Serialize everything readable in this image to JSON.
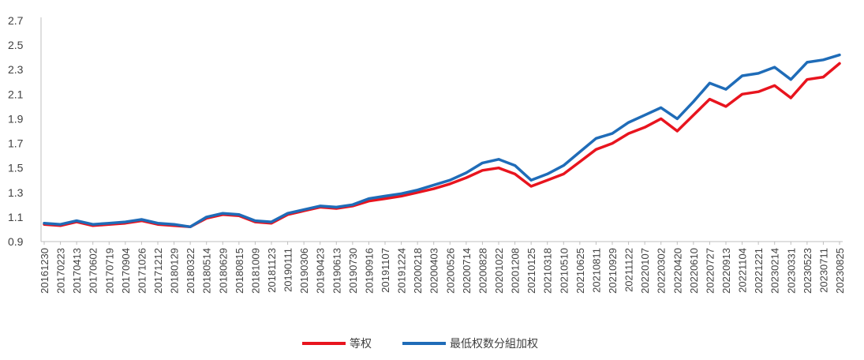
{
  "chart_data": {
    "type": "line",
    "title": "",
    "xlabel": "",
    "ylabel": "",
    "ylim": [
      0.9,
      2.7
    ],
    "yticks": [
      "0.9",
      "1.1",
      "1.3",
      "1.5",
      "1.7",
      "1.9",
      "2.1",
      "2.3",
      "2.5",
      "2.7"
    ],
    "x_tick_labels": [
      "20161230",
      "20170223",
      "20170413",
      "20170602",
      "20170719",
      "20170904",
      "20171026",
      "20171212",
      "20180129",
      "20180322",
      "20180514",
      "20180629",
      "20180815",
      "20181009",
      "20181123",
      "20190111",
      "20190306",
      "20190423",
      "20190613",
      "20190730",
      "20190916",
      "20191107",
      "20191224",
      "20200218",
      "20200403",
      "20200526",
      "20200714",
      "20200828",
      "20201022",
      "20201208",
      "20210125",
      "20210318",
      "20210510",
      "20210625",
      "20210811",
      "20210929",
      "20211122",
      "20220107",
      "20220302",
      "20220420",
      "20220610",
      "20220727",
      "20220913",
      "20221104",
      "20221221",
      "20230214",
      "20230331",
      "20230523",
      "20230711",
      "20230825"
    ],
    "grid": false,
    "legend_position": "bottom",
    "series": [
      {
        "name": "等权",
        "color": "#e8141e",
        "values": [
          1.04,
          1.03,
          1.06,
          1.03,
          1.04,
          1.05,
          1.07,
          1.04,
          1.03,
          1.02,
          1.09,
          1.12,
          1.11,
          1.06,
          1.05,
          1.12,
          1.15,
          1.18,
          1.17,
          1.19,
          1.23,
          1.25,
          1.27,
          1.3,
          1.33,
          1.37,
          1.42,
          1.48,
          1.5,
          1.45,
          1.35,
          1.4,
          1.45,
          1.55,
          1.65,
          1.7,
          1.78,
          1.83,
          1.9,
          1.8,
          1.93,
          2.06,
          2.0,
          2.1,
          2.12,
          2.17,
          2.07,
          2.22,
          2.24,
          2.35
        ]
      },
      {
        "name": "最低权数分組加权",
        "color": "#1f6cb8",
        "values": [
          1.05,
          1.04,
          1.07,
          1.04,
          1.05,
          1.06,
          1.08,
          1.05,
          1.04,
          1.02,
          1.1,
          1.13,
          1.12,
          1.07,
          1.06,
          1.13,
          1.16,
          1.19,
          1.18,
          1.2,
          1.25,
          1.27,
          1.29,
          1.32,
          1.36,
          1.4,
          1.46,
          1.54,
          1.57,
          1.52,
          1.4,
          1.45,
          1.52,
          1.63,
          1.74,
          1.78,
          1.87,
          1.93,
          1.99,
          1.9,
          2.04,
          2.19,
          2.14,
          2.25,
          2.27,
          2.32,
          2.22,
          2.36,
          2.38,
          2.42
        ]
      }
    ]
  }
}
